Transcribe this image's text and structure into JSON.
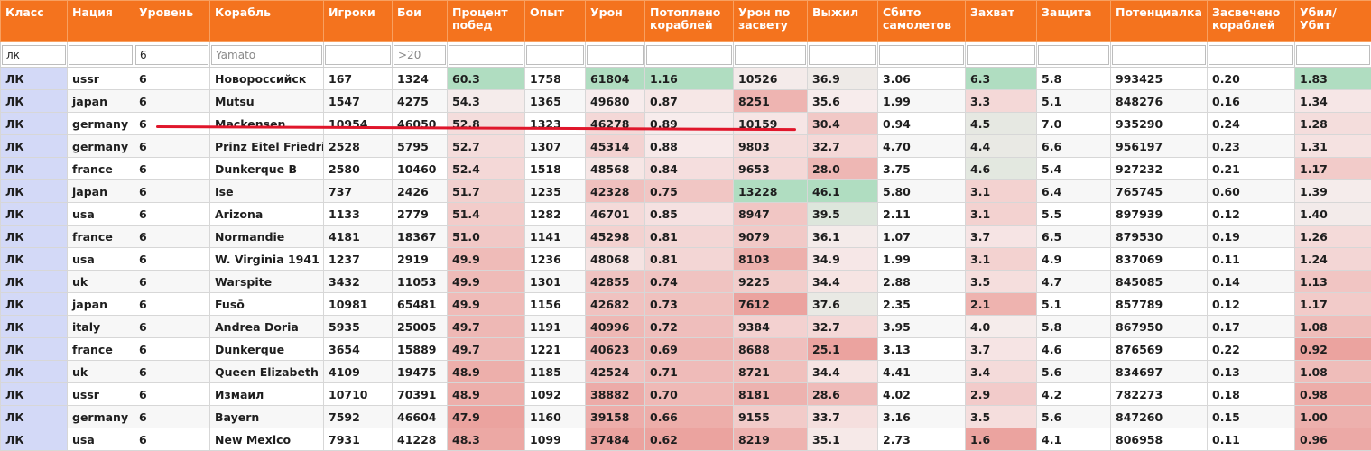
{
  "columns": [
    "Класс",
    "Нация",
    "Уровень",
    "Корабль",
    "Игроки",
    "Бои",
    "Процент побед",
    "Опыт",
    "Урон",
    "Потоплено кораблей",
    "Урон по засвету",
    "Выжил",
    "Сбито самолетов",
    "Захват",
    "Защита",
    "Потенциалка",
    "Засвечено кораблей",
    "Убил/ Убит"
  ],
  "filters": [
    {
      "value": "лк",
      "placeholder": ""
    },
    {
      "value": "",
      "placeholder": ""
    },
    {
      "value": "6",
      "placeholder": ""
    },
    {
      "value": "",
      "placeholder": "Yamato"
    },
    {
      "value": "",
      "placeholder": ""
    },
    {
      "value": "",
      "placeholder": ">20"
    },
    {
      "value": "",
      "placeholder": ""
    },
    {
      "value": "",
      "placeholder": ""
    },
    {
      "value": "",
      "placeholder": ""
    },
    {
      "value": "",
      "placeholder": ""
    },
    {
      "value": "",
      "placeholder": ""
    },
    {
      "value": "",
      "placeholder": ""
    },
    {
      "value": "",
      "placeholder": ""
    },
    {
      "value": "",
      "placeholder": ""
    },
    {
      "value": "",
      "placeholder": ""
    },
    {
      "value": "",
      "placeholder": ""
    },
    {
      "value": "",
      "placeholder": ""
    },
    {
      "value": "",
      "placeholder": ""
    }
  ],
  "rows": [
    [
      "ЛК",
      "ussr",
      "6",
      "Новороссийск",
      "167",
      "1324",
      "60.3",
      "1758",
      "61804",
      "1.16",
      "10526",
      "36.9",
      "3.06",
      "6.3",
      "5.8",
      "993425",
      "0.20",
      "1.83"
    ],
    [
      "ЛК",
      "japan",
      "6",
      "Mutsu",
      "1547",
      "4275",
      "54.3",
      "1365",
      "49680",
      "0.87",
      "8251",
      "35.6",
      "1.99",
      "3.3",
      "5.1",
      "848276",
      "0.16",
      "1.34"
    ],
    [
      "ЛК",
      "germany",
      "6",
      "Mackensen",
      "10954",
      "46050",
      "52.8",
      "1323",
      "46278",
      "0.89",
      "10159",
      "30.4",
      "0.94",
      "4.5",
      "7.0",
      "935290",
      "0.24",
      "1.28"
    ],
    [
      "ЛК",
      "germany",
      "6",
      "Prinz Eitel Friedrich",
      "2528",
      "5795",
      "52.7",
      "1307",
      "45314",
      "0.88",
      "9803",
      "32.7",
      "4.70",
      "4.4",
      "6.6",
      "956197",
      "0.23",
      "1.31"
    ],
    [
      "ЛК",
      "france",
      "6",
      "Dunkerque B",
      "2580",
      "10460",
      "52.4",
      "1518",
      "48568",
      "0.84",
      "9653",
      "28.0",
      "3.75",
      "4.6",
      "5.4",
      "927232",
      "0.21",
      "1.17"
    ],
    [
      "ЛК",
      "japan",
      "6",
      "Ise",
      "737",
      "2426",
      "51.7",
      "1235",
      "42328",
      "0.75",
      "13228",
      "46.1",
      "5.80",
      "3.1",
      "6.4",
      "765745",
      "0.60",
      "1.39"
    ],
    [
      "ЛК",
      "usa",
      "6",
      "Arizona",
      "1133",
      "2779",
      "51.4",
      "1282",
      "46701",
      "0.85",
      "8947",
      "39.5",
      "2.11",
      "3.1",
      "5.5",
      "897939",
      "0.12",
      "1.40"
    ],
    [
      "ЛК",
      "france",
      "6",
      "Normandie",
      "4181",
      "18367",
      "51.0",
      "1141",
      "45298",
      "0.81",
      "9079",
      "36.1",
      "1.07",
      "3.7",
      "6.5",
      "879530",
      "0.19",
      "1.26"
    ],
    [
      "ЛК",
      "usa",
      "6",
      "W. Virginia 1941",
      "1237",
      "2919",
      "49.9",
      "1236",
      "48068",
      "0.81",
      "8103",
      "34.9",
      "1.99",
      "3.1",
      "4.9",
      "837069",
      "0.11",
      "1.24"
    ],
    [
      "ЛК",
      "uk",
      "6",
      "Warspite",
      "3432",
      "11053",
      "49.9",
      "1301",
      "42855",
      "0.74",
      "9225",
      "34.4",
      "2.88",
      "3.5",
      "4.7",
      "845085",
      "0.14",
      "1.13"
    ],
    [
      "ЛК",
      "japan",
      "6",
      "Fusō",
      "10981",
      "65481",
      "49.9",
      "1156",
      "42682",
      "0.73",
      "7612",
      "37.6",
      "2.35",
      "2.1",
      "5.1",
      "857789",
      "0.12",
      "1.17"
    ],
    [
      "ЛК",
      "italy",
      "6",
      "Andrea Doria",
      "5935",
      "25005",
      "49.7",
      "1191",
      "40996",
      "0.72",
      "9384",
      "32.7",
      "3.95",
      "4.0",
      "5.8",
      "867950",
      "0.17",
      "1.08"
    ],
    [
      "ЛК",
      "france",
      "6",
      "Dunkerque",
      "3654",
      "15889",
      "49.7",
      "1221",
      "40623",
      "0.69",
      "8688",
      "25.1",
      "3.13",
      "3.7",
      "4.6",
      "876569",
      "0.22",
      "0.92"
    ],
    [
      "ЛК",
      "uk",
      "6",
      "Queen Elizabeth",
      "4109",
      "19475",
      "48.9",
      "1185",
      "42524",
      "0.71",
      "8721",
      "34.4",
      "4.41",
      "3.4",
      "5.6",
      "834697",
      "0.13",
      "1.08"
    ],
    [
      "ЛК",
      "ussr",
      "6",
      "Измаил",
      "10710",
      "70391",
      "48.9",
      "1092",
      "38882",
      "0.70",
      "8181",
      "28.6",
      "4.02",
      "2.9",
      "4.2",
      "782273",
      "0.18",
      "0.98"
    ],
    [
      "ЛК",
      "germany",
      "6",
      "Bayern",
      "7592",
      "46604",
      "47.9",
      "1160",
      "39158",
      "0.66",
      "9155",
      "33.7",
      "3.16",
      "3.5",
      "5.6",
      "847260",
      "0.15",
      "1.00"
    ],
    [
      "ЛК",
      "usa",
      "6",
      "New Mexico",
      "7931",
      "41228",
      "48.3",
      "1099",
      "37484",
      "0.62",
      "8219",
      "35.1",
      "2.73",
      "1.6",
      "4.1",
      "806958",
      "0.11",
      "0.96"
    ]
  ],
  "colors": {
    "header": "#f4731e",
    "class_cell": "#d3d9f7",
    "good": "#c4e3d1",
    "bad": "#eba39f",
    "annotation": "#e0162b"
  }
}
